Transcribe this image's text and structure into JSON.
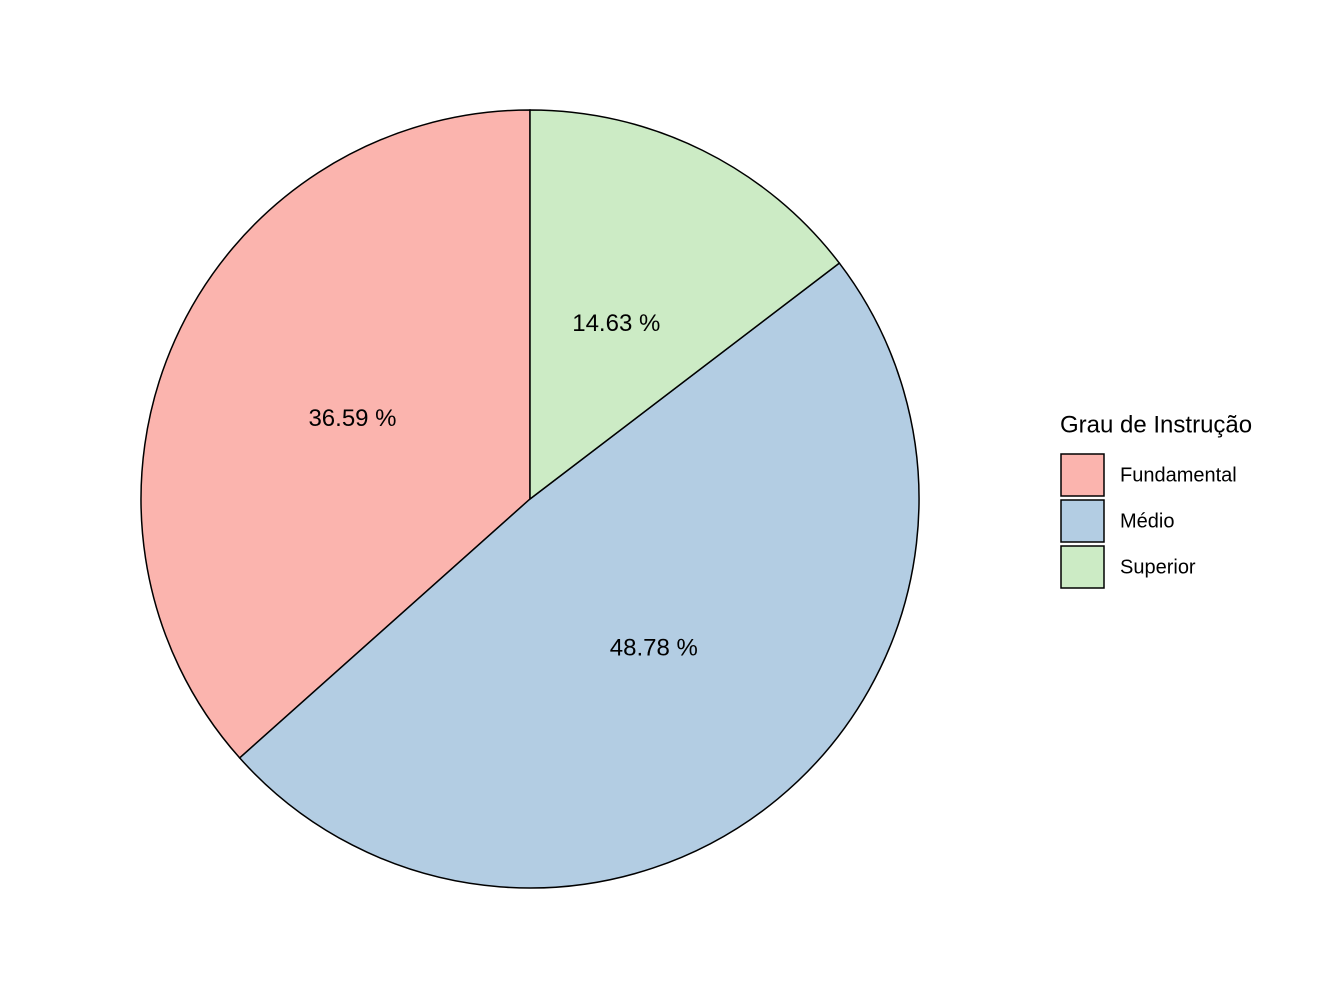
{
  "chart_data": {
    "type": "pie",
    "legend_title": "Grau de Instrução",
    "categories": [
      "Fundamental",
      "Médio",
      "Superior"
    ],
    "values": [
      36.59,
      48.78,
      14.63
    ],
    "value_labels": [
      "36.59 %",
      "48.78 %",
      "14.63 %"
    ],
    "colors": [
      "#FBB4AE",
      "#B3CDE3",
      "#CCEBC5"
    ],
    "legend": "right"
  }
}
